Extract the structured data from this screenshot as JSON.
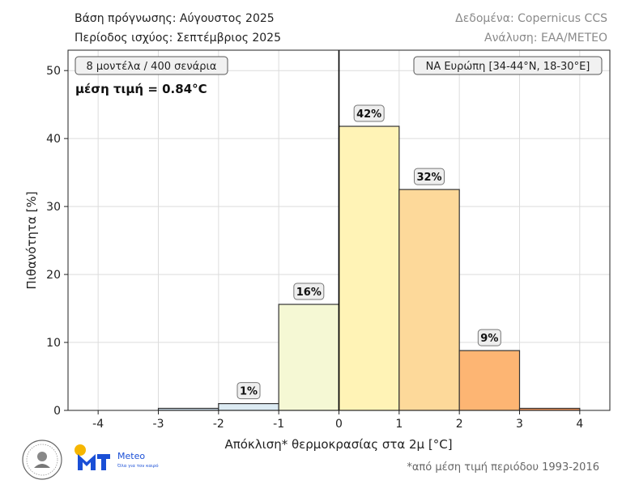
{
  "header": {
    "left_line1": "Βάση πρόγνωσης: Αύγουστος 2025",
    "left_line2": "Περίοδος ισχύος: Σεπτέμβριος 2025",
    "right_line1": "Δεδομένα: Copernicus CCS",
    "right_line2": "Ανάλυση: ΕΑΑ/METEO"
  },
  "footnote": "*από μέση τιμή περιόδου 1993-2016",
  "logos": {
    "meteo_name": "Meteo",
    "meteo_tagline": "Όλα για τον καιρό"
  },
  "chart_data": {
    "type": "bar",
    "xlabel": "Απόκλιση* θερμοκρασίας στα 2μ [°C]",
    "ylabel": "Πιθανότητα [%]",
    "xlim": [
      -4.5,
      4.5
    ],
    "ylim": [
      0,
      53
    ],
    "xticks": [
      -4,
      -3,
      -2,
      -1,
      0,
      1,
      2,
      3,
      4
    ],
    "yticks": [
      0,
      10,
      20,
      30,
      40,
      50
    ],
    "grid": true,
    "bins": [
      {
        "from": -3,
        "to": -2,
        "value": 0.3,
        "label": "",
        "color": "#c8d9e6"
      },
      {
        "from": -2,
        "to": -1,
        "value": 1.0,
        "label": "1%",
        "color": "#dcebf3"
      },
      {
        "from": -1,
        "to": 0,
        "value": 15.6,
        "label": "16%",
        "color": "#f5f8d4"
      },
      {
        "from": 0,
        "to": 1,
        "value": 41.8,
        "label": "42%",
        "color": "#fff3b6"
      },
      {
        "from": 1,
        "to": 2,
        "value": 32.5,
        "label": "32%",
        "color": "#fdd99a"
      },
      {
        "from": 2,
        "to": 3,
        "value": 8.8,
        "label": "9%",
        "color": "#fdb573"
      },
      {
        "from": 3,
        "to": 4,
        "value": 0.3,
        "label": "",
        "color": "#f4955a"
      }
    ],
    "vline_x": 0,
    "annotations": {
      "ensemble": "8 μοντέλα / 400 σενάρια",
      "mean": "μέση τιμή = 0.84°C",
      "region": "ΝΑ Ευρώπη [34-44°N, 18-30°E]"
    }
  }
}
